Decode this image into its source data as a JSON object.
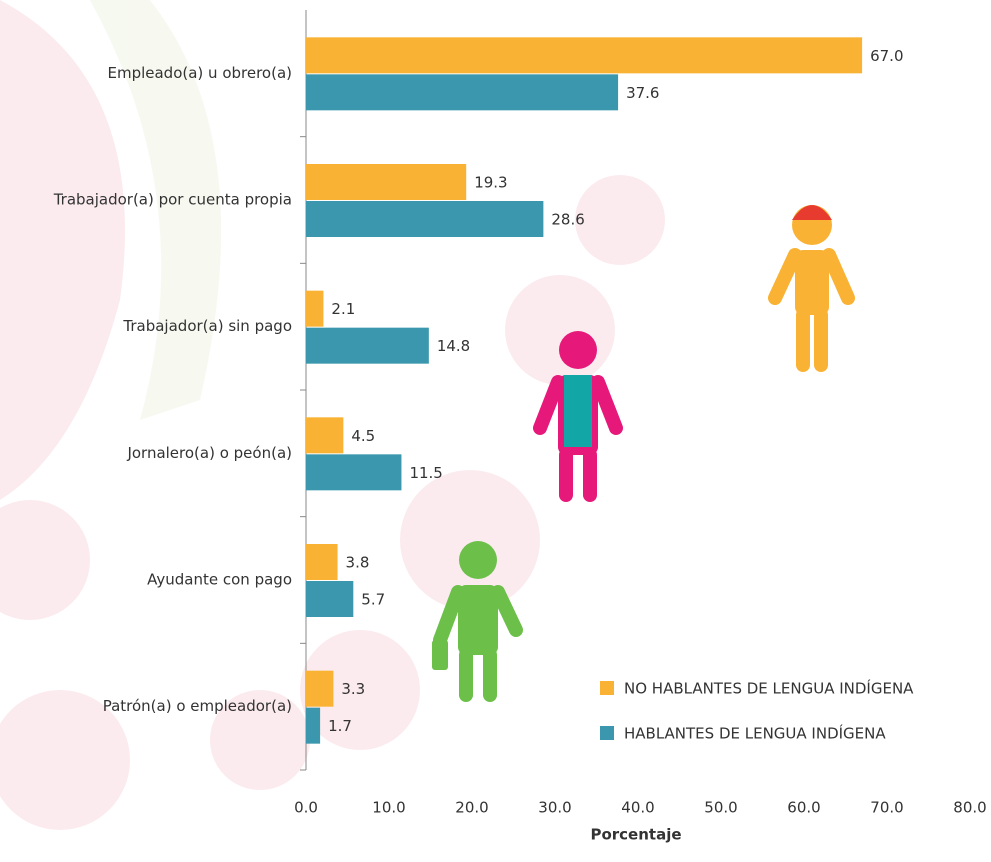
{
  "chart_data": {
    "type": "bar",
    "orientation": "horizontal",
    "xlabel": "Porcentaje",
    "categories": [
      "Empleado(a) u obrero(a)",
      "Trabajador(a) por cuenta propia",
      "Trabajador(a) sin pago",
      "Jornalero(a) o peón(a)",
      "Ayudante con pago",
      "Patrón(a) o empleador(a)"
    ],
    "series": [
      {
        "name": "NO HABLANTES DE LENGUA INDÍGENA",
        "color": "#f9b233",
        "values": [
          67.0,
          19.3,
          2.1,
          4.5,
          3.8,
          3.3
        ],
        "value_labels": [
          "67.0",
          "19.3",
          "2.1",
          "4.5",
          "3.8",
          "3.3"
        ]
      },
      {
        "name": "HABLANTES DE LENGUA INDÍGENA",
        "color": "#3a97ad",
        "values": [
          37.6,
          28.6,
          14.8,
          11.5,
          5.7,
          1.7
        ],
        "value_labels": [
          "37.6",
          "28.6",
          "14.8",
          "11.5",
          "5.7",
          "1.7"
        ]
      }
    ],
    "xlim": [
      0,
      80
    ],
    "xticks": [
      {
        "value": 0,
        "label": "0.0"
      },
      {
        "value": 10,
        "label": "10.0"
      },
      {
        "value": 20,
        "label": "20.0"
      },
      {
        "value": 30,
        "label": "30.0"
      },
      {
        "value": 40,
        "label": "40.0"
      },
      {
        "value": 50,
        "label": "50.0"
      },
      {
        "value": 60,
        "label": "60.0"
      },
      {
        "value": 70,
        "label": "70.0"
      },
      {
        "value": 80,
        "label": "80.0"
      }
    ],
    "grid": false,
    "legend": "lower right"
  }
}
